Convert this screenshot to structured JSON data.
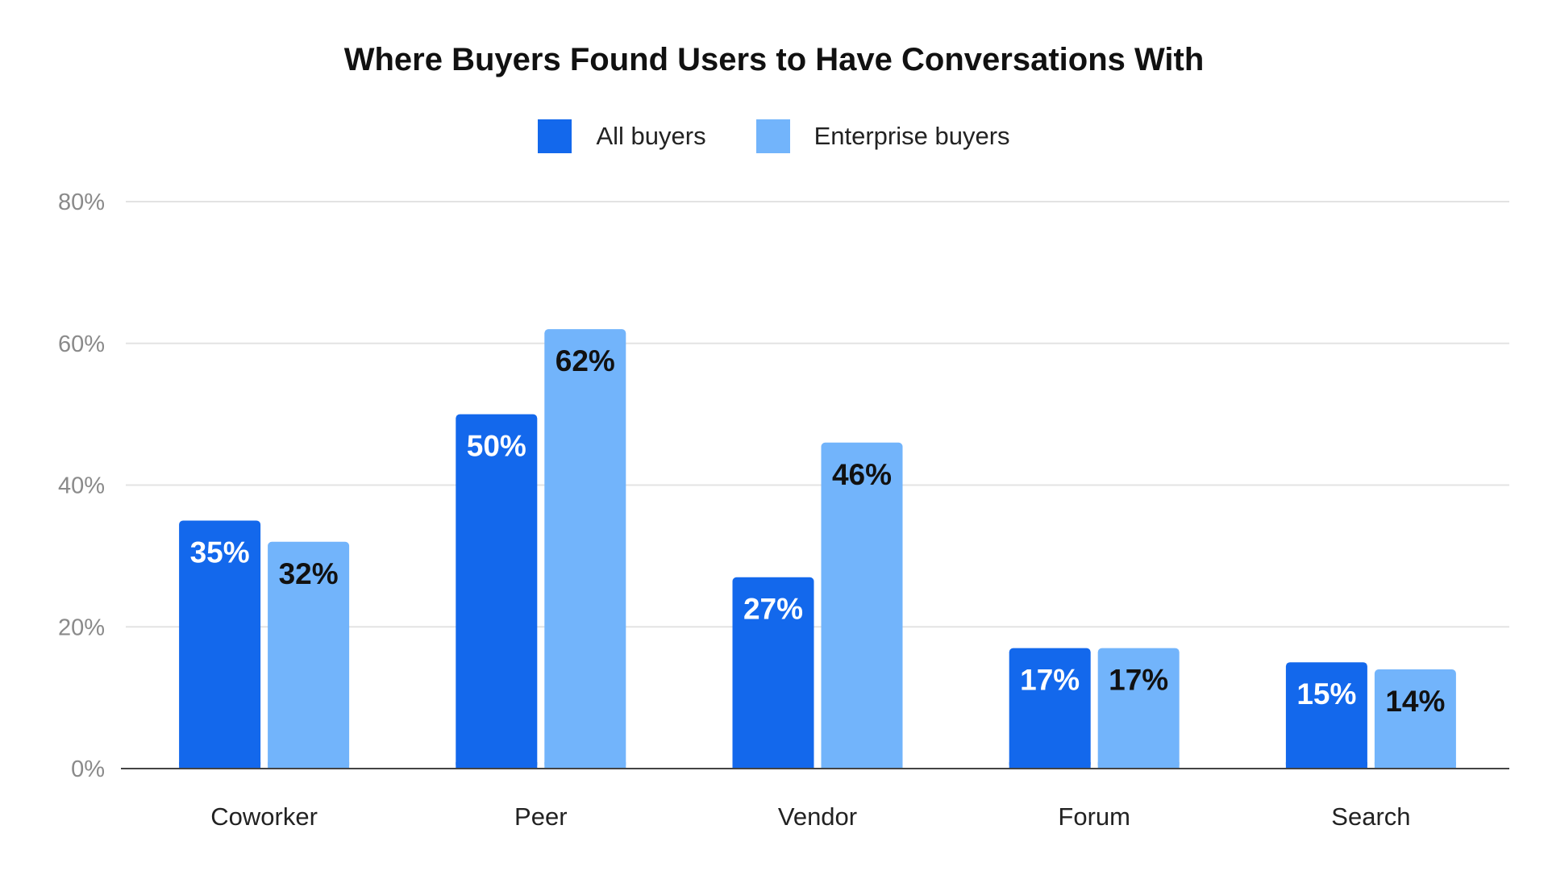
{
  "chart_data": {
    "type": "bar",
    "title": "Where Buyers Found Users to Have Conversations With",
    "xlabel": "",
    "ylabel": "",
    "categories": [
      "Coworker",
      "Peer",
      "Vendor",
      "Forum",
      "Search"
    ],
    "series": [
      {
        "name": "All buyers",
        "color": "#1368ec",
        "label_color": "#ffffff",
        "values": [
          35,
          50,
          27,
          17,
          15
        ],
        "labels": [
          "35%",
          "50%",
          "27%",
          "17%",
          "15%"
        ]
      },
      {
        "name": "Enterprise buyers",
        "color": "#72b4fb",
        "label_color": "#111111",
        "values": [
          32,
          62,
          46,
          17,
          14
        ],
        "labels": [
          "32%",
          "62%",
          "46%",
          "17%",
          "14%"
        ]
      }
    ],
    "ylim": [
      0,
      80
    ],
    "yticks": [
      0,
      20,
      40,
      60,
      80
    ],
    "ytick_labels": [
      "0%",
      "20%",
      "40%",
      "60%",
      "80%"
    ],
    "grid": true,
    "legend_position": "top-center"
  }
}
